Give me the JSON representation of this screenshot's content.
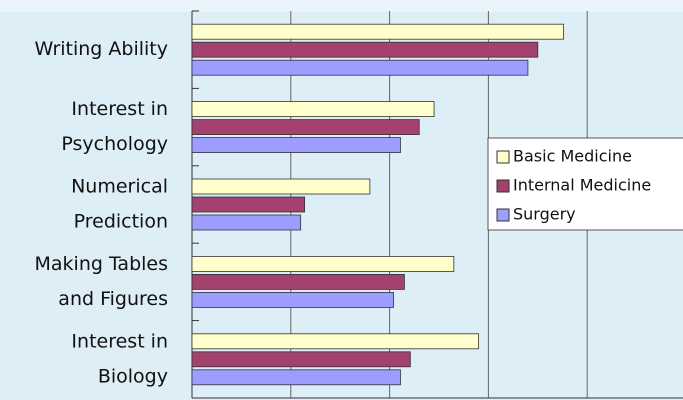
{
  "chart_data": {
    "type": "hbar",
    "categories": [
      [
        "Writing Ability"
      ],
      [
        "Interest in",
        "Psychology"
      ],
      [
        "Numerical",
        "Prediction"
      ],
      [
        "Making Tables",
        "and Figures"
      ],
      [
        "Interest in",
        "Biology"
      ]
    ],
    "series": [
      {
        "name": "Basic Medicine",
        "color": "#ffffcc",
        "values": [
          3.76,
          2.45,
          1.8,
          2.65,
          2.9
        ]
      },
      {
        "name": "Internal Medicine",
        "color": "#a3426f",
        "values": [
          3.5,
          2.3,
          1.14,
          2.15,
          2.21
        ]
      },
      {
        "name": "Surgery",
        "color": "#9d9dff",
        "values": [
          3.4,
          2.11,
          1.1,
          2.04,
          2.11
        ]
      }
    ],
    "xlim": [
      0,
      5
    ],
    "xticks": [
      0,
      1,
      2,
      3,
      4,
      5
    ],
    "grid": true,
    "legend": "right"
  }
}
